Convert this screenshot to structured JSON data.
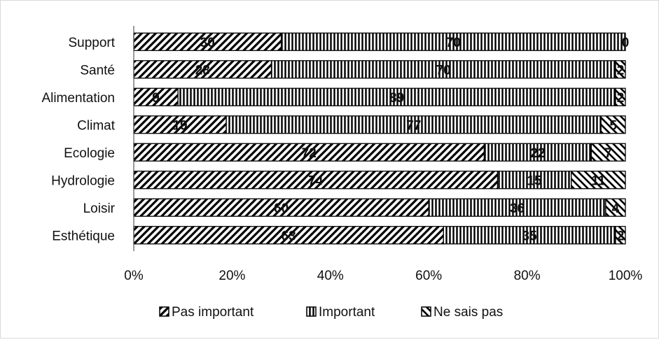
{
  "chart_data": {
    "type": "bar",
    "orientation": "horizontal",
    "stacked": "percent",
    "categories": [
      "Support",
      "Santé",
      "Alimentation",
      "Climat",
      "Ecologie",
      "Hydrologie",
      "Loisir",
      "Esthétique"
    ],
    "series": [
      {
        "name": "Pas important",
        "values": [
          30,
          28,
          9,
          19,
          72,
          74,
          60,
          63
        ],
        "pattern": "diagonal-forward"
      },
      {
        "name": "Important",
        "values": [
          70,
          70,
          89,
          77,
          22,
          15,
          36,
          35
        ],
        "pattern": "vertical"
      },
      {
        "name": "Ne sais pas",
        "values": [
          0,
          2,
          2,
          5,
          7,
          11,
          4,
          2
        ],
        "pattern": "diagonal-back"
      }
    ],
    "data_labels": [
      [
        "30",
        "70",
        "0"
      ],
      [
        "28",
        "70",
        "2"
      ],
      [
        "9",
        "89",
        "2"
      ],
      [
        "19",
        "77",
        "5"
      ],
      [
        "72",
        "22",
        "7"
      ],
      [
        "74",
        "15",
        "11"
      ],
      [
        "60",
        "36",
        "4"
      ],
      [
        "63",
        "35",
        "2"
      ]
    ],
    "x_ticks": [
      "0%",
      "20%",
      "40%",
      "60%",
      "80%",
      "100%"
    ],
    "xlim": [
      0,
      100
    ],
    "title": "",
    "xlabel": "",
    "ylabel": "",
    "grid": false,
    "legend_position": "bottom",
    "colors": {
      "stroke": "#000000",
      "fill": "#ffffff",
      "frame": "#d9d9d9"
    }
  }
}
